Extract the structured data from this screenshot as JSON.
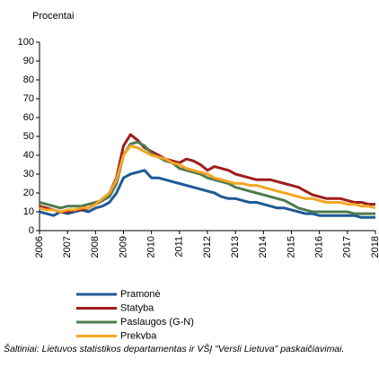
{
  "chart_data": {
    "type": "line",
    "ylabel": "Procentai",
    "x": [
      2006,
      2006.25,
      2006.5,
      2006.75,
      2007,
      2007.25,
      2007.5,
      2007.75,
      2008,
      2008.25,
      2008.5,
      2008.75,
      2009,
      2009.25,
      2009.5,
      2009.75,
      2010,
      2010.25,
      2010.5,
      2010.75,
      2011,
      2011.25,
      2011.5,
      2011.75,
      2012,
      2012.25,
      2012.5,
      2012.75,
      2013,
      2013.25,
      2013.5,
      2013.75,
      2014,
      2014.25,
      2014.5,
      2014.75,
      2015,
      2015.25,
      2015.5,
      2015.75,
      2016,
      2016.25,
      2016.5,
      2016.75,
      2017,
      2017.25,
      2017.5,
      2017.75,
      2018
    ],
    "series": [
      {
        "name": "Pramonė",
        "color": "#1f5a96",
        "values": [
          10,
          9,
          8,
          10,
          9,
          10,
          11,
          10,
          12,
          13,
          15,
          20,
          28,
          30,
          31,
          32,
          28,
          28,
          27,
          26,
          25,
          24,
          23,
          22,
          21,
          20,
          18,
          17,
          17,
          16,
          15,
          15,
          14,
          13,
          12,
          12,
          11,
          10,
          9,
          9,
          8,
          8,
          8,
          8,
          8,
          8,
          7,
          7,
          7
        ]
      },
      {
        "name": "Statyba",
        "color": "#a01c1c",
        "values": [
          13,
          12,
          11,
          10,
          10,
          11,
          11,
          12,
          14,
          16,
          20,
          28,
          45,
          51,
          48,
          44,
          42,
          40,
          38,
          37,
          36,
          38,
          37,
          35,
          32,
          34,
          33,
          32,
          30,
          29,
          28,
          27,
          27,
          27,
          26,
          25,
          24,
          23,
          21,
          19,
          18,
          17,
          17,
          17,
          16,
          15,
          15,
          14,
          14
        ]
      },
      {
        "name": "Paslaugos (G-N)",
        "color": "#4e7a4e",
        "values": [
          15,
          14,
          13,
          12,
          13,
          13,
          13,
          14,
          15,
          16,
          18,
          25,
          40,
          46,
          47,
          45,
          41,
          39,
          37,
          36,
          33,
          32,
          31,
          30,
          28,
          27,
          26,
          25,
          23,
          22,
          21,
          20,
          19,
          18,
          17,
          16,
          14,
          12,
          11,
          10,
          10,
          10,
          10,
          10,
          10,
          9,
          9,
          9,
          9
        ]
      },
      {
        "name": "Prekyba",
        "color": "#f5a623",
        "values": [
          12,
          11,
          11,
          10,
          11,
          11,
          12,
          12,
          14,
          17,
          20,
          27,
          40,
          45,
          44,
          42,
          40,
          39,
          38,
          36,
          35,
          33,
          32,
          31,
          30,
          28,
          27,
          26,
          25,
          25,
          24,
          24,
          23,
          22,
          21,
          20,
          19,
          18,
          17,
          17,
          16,
          15,
          15,
          15,
          14,
          14,
          13,
          13,
          12
        ]
      }
    ],
    "xlim": [
      2006,
      2018
    ],
    "xticks": [
      2006,
      2007,
      2008,
      2009,
      2010,
      2011,
      2012,
      2013,
      2014,
      2015,
      2016,
      2017,
      2018
    ],
    "ylim": [
      0,
      100
    ],
    "yticks": [
      0,
      10,
      20,
      30,
      40,
      50,
      60,
      70,
      80,
      90,
      100
    ],
    "grid": false,
    "source": "Šaltiniai: Lietuvos statistikos departamentas ir VŠĮ \"Versli Lietuva\" paskaičiavimai."
  }
}
